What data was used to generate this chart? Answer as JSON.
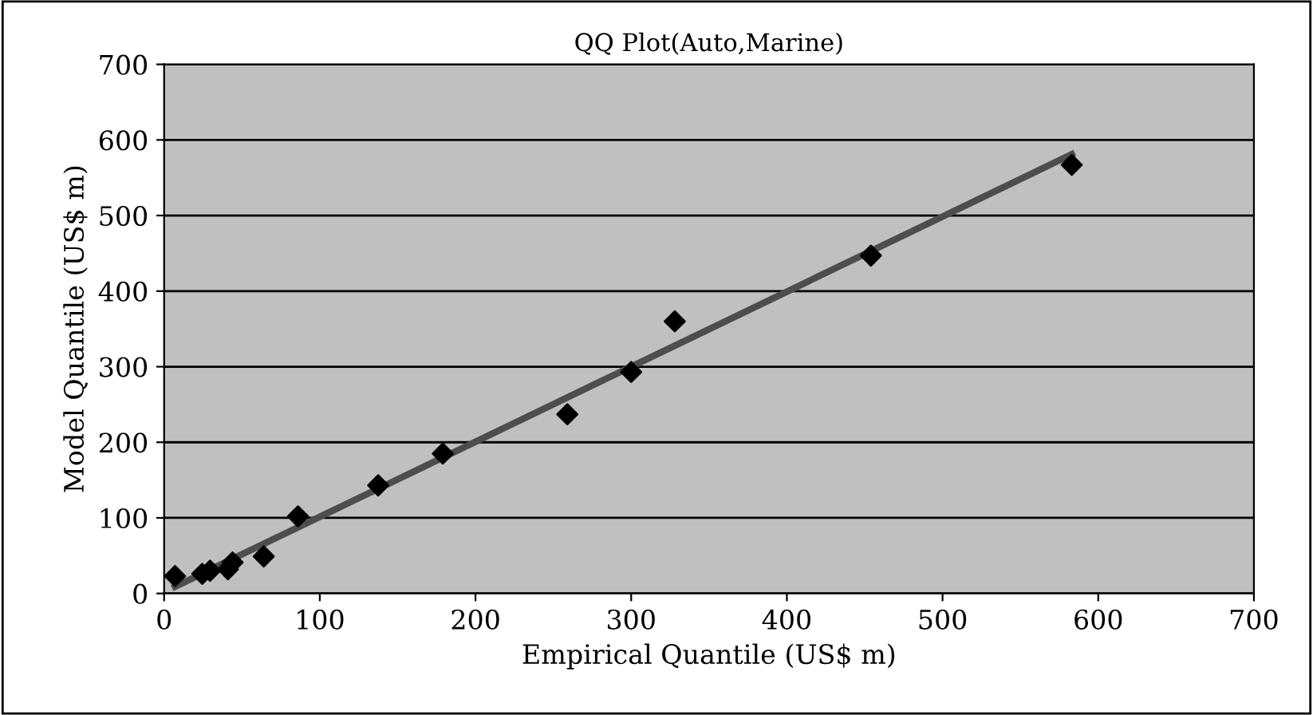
{
  "chart_data": {
    "type": "scatter",
    "title": "QQ Plot(Auto,Marine)",
    "xlabel": "Empirical Quantile (US$ m)",
    "ylabel": "Model Quantile (US$ m)",
    "xlim": [
      0,
      700
    ],
    "xticks": [
      0,
      100,
      200,
      300,
      400,
      500,
      600,
      700
    ],
    "ylim": [
      0,
      700
    ],
    "yticks": [
      0,
      100,
      200,
      300,
      400,
      500,
      600,
      700
    ],
    "grid": "y",
    "marker": "diamond",
    "series": [
      {
        "color": "#000000",
        "x": [
          7,
          24.5,
          29.5,
          41,
          44,
          64,
          86,
          137.5,
          179,
          259,
          300,
          328,
          454,
          583
        ],
        "values": [
          23,
          26,
          30,
          32,
          41,
          49,
          102,
          143,
          185,
          237,
          293,
          360,
          447,
          567
        ]
      },
      {
        "type": "line",
        "color": "#4d4d4d",
        "marker": "none",
        "line_style": "solid",
        "x": [
          7,
          583
        ],
        "values": [
          9,
          581
        ]
      }
    ]
  }
}
